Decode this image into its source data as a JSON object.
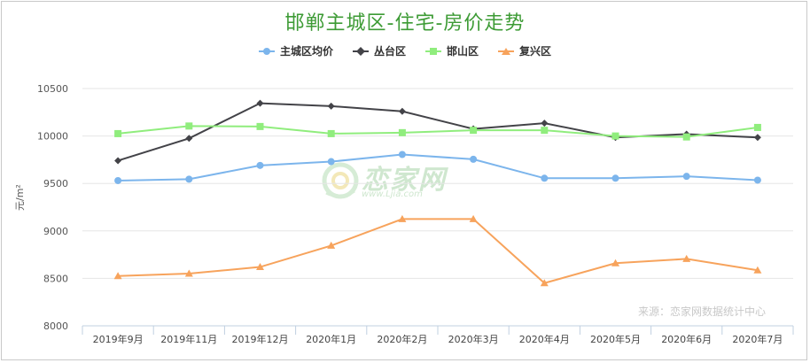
{
  "chart_data": {
    "type": "line",
    "title": "邯郸主城区-住宅-房价走势",
    "ylabel": "元/m²",
    "ylim": [
      8000,
      10500
    ],
    "yticks": [
      8000,
      8500,
      9000,
      9500,
      10000,
      10500
    ],
    "grid": "horizontal",
    "legend_position": "top-center",
    "categories": [
      "2019年9月",
      "2019年11月",
      "2019年12月",
      "2020年1月",
      "2020年2月",
      "2020年3月",
      "2020年4月",
      "2020年5月",
      "2020年6月",
      "2020年7月"
    ],
    "series": [
      {
        "name": "主城区均价",
        "color": "#7cb5ec",
        "marker": "circle",
        "values": [
          9530,
          9545,
          9690,
          9730,
          9805,
          9755,
          9555,
          9555,
          9575,
          9535
        ]
      },
      {
        "name": "丛台区",
        "color": "#434348",
        "marker": "diamond",
        "values": [
          9740,
          9975,
          10345,
          10315,
          10260,
          10075,
          10135,
          9985,
          10020,
          9985
        ]
      },
      {
        "name": "邯山区",
        "color": "#90ed7d",
        "marker": "square",
        "values": [
          10025,
          10105,
          10100,
          10025,
          10035,
          10060,
          10060,
          10000,
          9990,
          10090
        ]
      },
      {
        "name": "复兴区",
        "color": "#f7a35c",
        "marker": "triangle",
        "values": [
          8525,
          8550,
          8620,
          8845,
          9125,
          9125,
          8450,
          8660,
          8705,
          8585
        ]
      }
    ]
  },
  "source_note": "来源：恋家网数据统计中心",
  "watermark": {
    "text": "恋家网",
    "url": "www.Ljia.com"
  }
}
